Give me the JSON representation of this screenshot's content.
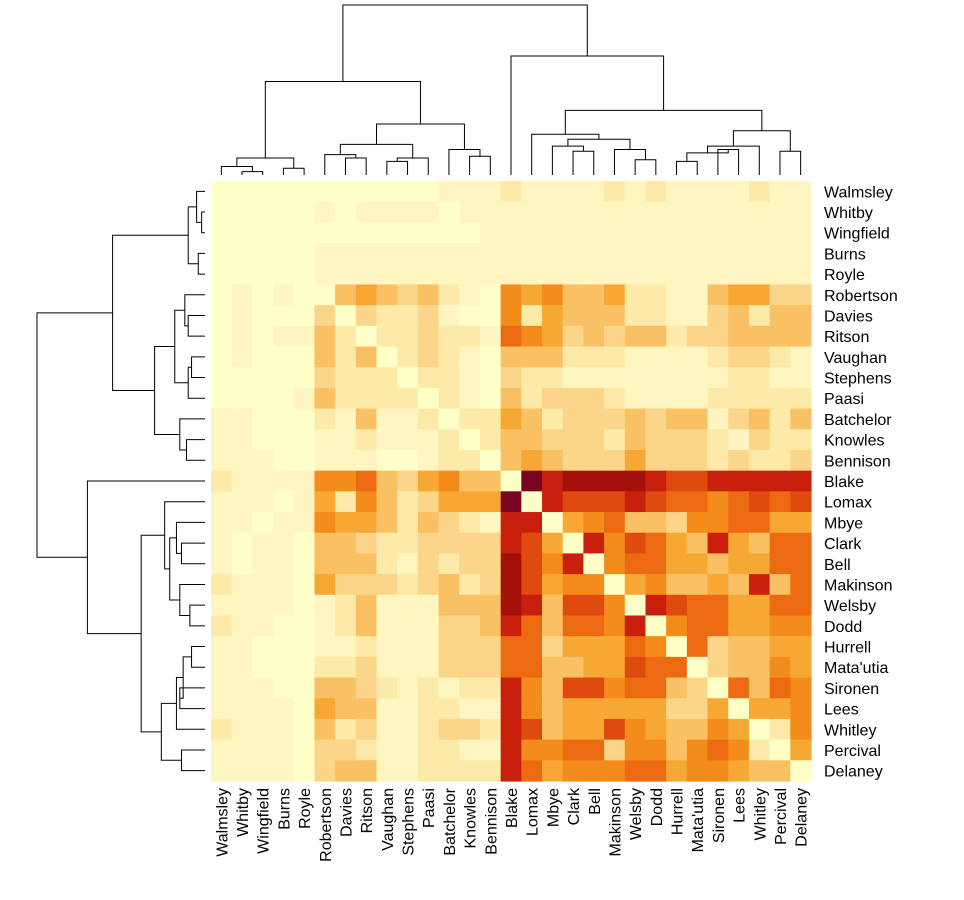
{
  "chart_data": {
    "type": "heatmap",
    "title": "",
    "xlabel": "",
    "ylabel": "",
    "labels": [
      "Walmsley",
      "Whitby",
      "Wingfield",
      "Burns",
      "Royle",
      "Robertson",
      "Davies",
      "Ritson",
      "Vaughan",
      "Stephens",
      "Paasi",
      "Batchelor",
      "Knowles",
      "Bennison",
      "Blake",
      "Lomax",
      "Mbye",
      "Clark",
      "Bell",
      "Makinson",
      "Welsby",
      "Dodd",
      "Hurrell",
      "Mata'utia",
      "Sironen",
      "Lees",
      "Whitley",
      "Percival",
      "Delaney"
    ],
    "row_labels": [
      "Walmsley",
      "Whitby",
      "Wingfield",
      "Burns",
      "Royle",
      "Robertson",
      "Davies",
      "Ritson",
      "Vaughan",
      "Stephens",
      "Paasi",
      "Batchelor",
      "Knowles",
      "Bennison",
      "Blake",
      "Lomax",
      "Mbye",
      "Clark",
      "Bell",
      "Makinson",
      "Welsby",
      "Dodd",
      "Hurrell",
      "Mata'utia",
      "Sironen",
      "Lees",
      "Whitley",
      "Percival",
      "Delaney"
    ],
    "col_labels": [
      "Walmsley",
      "Whitby",
      "Wingfield",
      "Burns",
      "Royle",
      "Robertson",
      "Davies",
      "Ritson",
      "Vaughan",
      "Stephens",
      "Paasi",
      "Batchelor",
      "Knowles",
      "Bennison",
      "Blake",
      "Lomax",
      "Mbye",
      "Clark",
      "Bell",
      "Makinson",
      "Welsby",
      "Dodd",
      "Hurrell",
      "Mata'utia",
      "Sironen",
      "Lees",
      "Whitley",
      "Percival",
      "Delaney"
    ],
    "color_scale": [
      "#FFFFC8",
      "#FFF5C0",
      "#FDE9A8",
      "#FBD58A",
      "#F9C163",
      "#F7A834",
      "#F38C1A",
      "#EC6A12",
      "#DF4A0E",
      "#C8200C",
      "#A4110A",
      "#7A0520"
    ],
    "values": [
      [
        0,
        0,
        0,
        0,
        0,
        0,
        0,
        0,
        0,
        0,
        0,
        1,
        1,
        1,
        2,
        1,
        1,
        1,
        1,
        2,
        1,
        2,
        1,
        1,
        1,
        1,
        2,
        1,
        1
      ],
      [
        0,
        0,
        0,
        0,
        0,
        1,
        0,
        1,
        1,
        1,
        1,
        0,
        1,
        1,
        1,
        1,
        1,
        1,
        1,
        1,
        1,
        1,
        1,
        1,
        1,
        1,
        1,
        1,
        1
      ],
      [
        0,
        0,
        0,
        0,
        0,
        0,
        0,
        0,
        0,
        0,
        0,
        0,
        0,
        1,
        1,
        1,
        1,
        1,
        1,
        1,
        1,
        1,
        1,
        1,
        1,
        1,
        1,
        1,
        1
      ],
      [
        0,
        0,
        0,
        0,
        0,
        1,
        1,
        1,
        1,
        1,
        1,
        1,
        1,
        1,
        1,
        1,
        1,
        1,
        1,
        1,
        1,
        1,
        1,
        1,
        1,
        1,
        1,
        1,
        1
      ],
      [
        0,
        0,
        0,
        0,
        0,
        1,
        1,
        1,
        1,
        1,
        1,
        1,
        1,
        1,
        1,
        1,
        1,
        1,
        1,
        1,
        1,
        1,
        1,
        1,
        1,
        1,
        1,
        1,
        1
      ],
      [
        0,
        1,
        0,
        1,
        0,
        0,
        4,
        5,
        4,
        3,
        4,
        2,
        1,
        0,
        6,
        5,
        6,
        4,
        4,
        5,
        2,
        2,
        1,
        1,
        4,
        5,
        5,
        3,
        3
      ],
      [
        0,
        1,
        0,
        0,
        0,
        3,
        0,
        3,
        2,
        2,
        3,
        1,
        0,
        0,
        6,
        2,
        5,
        4,
        4,
        4,
        2,
        2,
        1,
        1,
        3,
        4,
        2,
        4,
        4
      ],
      [
        0,
        1,
        0,
        1,
        1,
        4,
        2,
        0,
        2,
        2,
        3,
        2,
        2,
        1,
        7,
        6,
        5,
        3,
        4,
        3,
        4,
        4,
        2,
        3,
        3,
        4,
        4,
        4,
        4
      ],
      [
        0,
        1,
        0,
        0,
        0,
        4,
        2,
        4,
        0,
        2,
        3,
        2,
        1,
        0,
        4,
        4,
        4,
        2,
        2,
        2,
        1,
        1,
        1,
        1,
        2,
        3,
        3,
        2,
        1
      ],
      [
        0,
        0,
        0,
        0,
        0,
        3,
        2,
        2,
        2,
        0,
        2,
        2,
        1,
        0,
        3,
        2,
        2,
        1,
        1,
        1,
        1,
        1,
        1,
        1,
        1,
        2,
        2,
        1,
        1
      ],
      [
        0,
        0,
        0,
        0,
        1,
        4,
        2,
        2,
        2,
        2,
        0,
        2,
        1,
        0,
        4,
        2,
        3,
        3,
        3,
        2,
        1,
        1,
        1,
        1,
        2,
        2,
        2,
        2,
        2
      ],
      [
        1,
        1,
        0,
        0,
        0,
        2,
        1,
        4,
        1,
        1,
        2,
        0,
        2,
        2,
        5,
        4,
        2,
        3,
        3,
        3,
        4,
        3,
        4,
        4,
        1,
        3,
        4,
        2,
        4
      ],
      [
        1,
        1,
        0,
        0,
        0,
        1,
        1,
        2,
        1,
        1,
        1,
        2,
        0,
        2,
        4,
        4,
        3,
        3,
        3,
        2,
        4,
        3,
        3,
        3,
        2,
        1,
        3,
        2,
        2
      ],
      [
        1,
        1,
        1,
        0,
        0,
        1,
        1,
        1,
        0,
        0,
        1,
        2,
        2,
        0,
        4,
        5,
        4,
        3,
        3,
        3,
        5,
        3,
        3,
        3,
        2,
        3,
        2,
        2,
        3
      ],
      [
        2,
        1,
        1,
        1,
        1,
        6,
        6,
        7,
        4,
        3,
        5,
        6,
        4,
        4,
        0,
        11,
        9,
        10,
        10,
        10,
        10,
        9,
        8,
        8,
        9,
        9,
        9,
        9,
        9
      ],
      [
        1,
        1,
        1,
        0,
        1,
        5,
        2,
        6,
        4,
        2,
        3,
        5,
        5,
        5,
        11,
        0,
        9,
        8,
        8,
        8,
        9,
        8,
        7,
        7,
        6,
        7,
        8,
        7,
        8
      ],
      [
        1,
        1,
        0,
        1,
        1,
        6,
        5,
        5,
        4,
        2,
        4,
        3,
        2,
        1,
        9,
        9,
        0,
        5,
        6,
        7,
        4,
        4,
        3,
        6,
        6,
        7,
        7,
        5,
        5
      ],
      [
        1,
        0,
        1,
        1,
        0,
        4,
        4,
        3,
        2,
        2,
        3,
        3,
        3,
        3,
        9,
        8,
        5,
        0,
        9,
        6,
        8,
        7,
        5,
        4,
        9,
        5,
        4,
        7,
        7
      ],
      [
        1,
        0,
        1,
        1,
        0,
        4,
        4,
        4,
        2,
        1,
        3,
        2,
        3,
        3,
        10,
        8,
        6,
        9,
        0,
        6,
        7,
        7,
        5,
        5,
        4,
        5,
        5,
        7,
        7
      ],
      [
        2,
        1,
        1,
        1,
        0,
        5,
        3,
        3,
        3,
        2,
        3,
        4,
        2,
        3,
        10,
        8,
        5,
        6,
        6,
        0,
        5,
        6,
        4,
        4,
        5,
        4,
        9,
        4,
        7
      ],
      [
        1,
        1,
        1,
        1,
        0,
        1,
        2,
        4,
        1,
        1,
        1,
        4,
        4,
        4,
        10,
        9,
        4,
        8,
        8,
        6,
        0,
        9,
        8,
        7,
        7,
        5,
        5,
        7,
        7
      ],
      [
        2,
        1,
        1,
        0,
        0,
        1,
        2,
        4,
        1,
        1,
        1,
        3,
        3,
        4,
        9,
        7,
        4,
        7,
        7,
        6,
        9,
        0,
        6,
        7,
        7,
        5,
        5,
        6,
        6
      ],
      [
        1,
        1,
        0,
        0,
        0,
        1,
        1,
        2,
        1,
        1,
        1,
        3,
        3,
        3,
        7,
        7,
        3,
        5,
        5,
        5,
        7,
        6,
        0,
        7,
        3,
        4,
        4,
        5,
        5
      ],
      [
        1,
        1,
        0,
        0,
        0,
        2,
        2,
        3,
        1,
        1,
        1,
        3,
        3,
        3,
        7,
        7,
        4,
        4,
        5,
        5,
        8,
        7,
        7,
        0,
        3,
        4,
        4,
        6,
        5
      ],
      [
        1,
        1,
        1,
        0,
        0,
        4,
        4,
        3,
        2,
        1,
        2,
        1,
        2,
        2,
        9,
        6,
        4,
        8,
        8,
        6,
        7,
        7,
        4,
        3,
        0,
        7,
        4,
        7,
        6
      ],
      [
        1,
        1,
        1,
        1,
        0,
        5,
        4,
        4,
        1,
        1,
        2,
        2,
        1,
        1,
        9,
        6,
        4,
        5,
        5,
        5,
        5,
        5,
        3,
        3,
        5,
        0,
        5,
        5,
        6
      ],
      [
        2,
        1,
        1,
        1,
        0,
        4,
        2,
        3,
        1,
        1,
        2,
        3,
        3,
        2,
        9,
        8,
        4,
        5,
        5,
        8,
        6,
        5,
        4,
        4,
        6,
        5,
        0,
        2,
        6
      ],
      [
        1,
        1,
        1,
        1,
        0,
        3,
        3,
        2,
        1,
        1,
        2,
        2,
        1,
        1,
        9,
        6,
        6,
        7,
        7,
        3,
        6,
        6,
        4,
        6,
        7,
        6,
        2,
        0,
        5
      ],
      [
        1,
        1,
        1,
        1,
        0,
        3,
        4,
        4,
        1,
        1,
        2,
        2,
        2,
        2,
        9,
        7,
        5,
        6,
        6,
        6,
        7,
        7,
        5,
        6,
        6,
        5,
        4,
        4,
        0
      ]
    ]
  }
}
